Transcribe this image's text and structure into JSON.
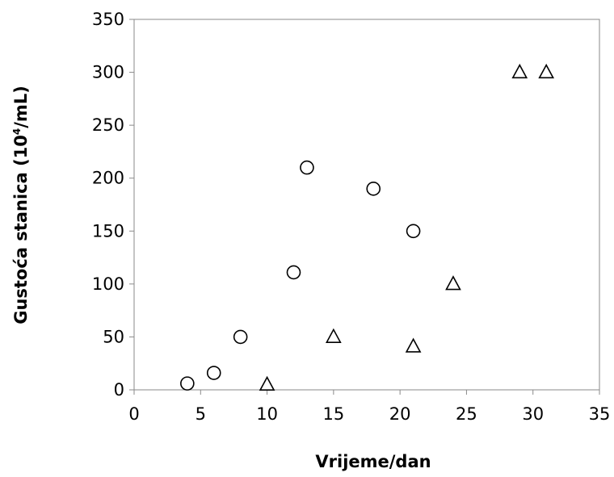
{
  "chart_data": {
    "type": "scatter",
    "title": "",
    "xlabel": "Vrijeme/dan",
    "ylabel": {
      "base": "Gustoća stanica (10",
      "exponent": "4",
      "unit": "/mL)"
    },
    "xlim": [
      0,
      35
    ],
    "ylim": [
      0,
      350
    ],
    "x_ticks": [
      0,
      5,
      10,
      15,
      20,
      25,
      30,
      35
    ],
    "y_ticks": [
      0,
      50,
      100,
      150,
      200,
      250,
      300,
      350
    ],
    "grid": false,
    "legend": "none",
    "series": [
      {
        "marker": "circle",
        "color": "#000000",
        "points": [
          {
            "x": 4,
            "y": 6
          },
          {
            "x": 6,
            "y": 16
          },
          {
            "x": 8,
            "y": 50
          },
          {
            "x": 12,
            "y": 111
          },
          {
            "x": 13,
            "y": 210
          },
          {
            "x": 18,
            "y": 190
          },
          {
            "x": 21,
            "y": 150
          }
        ]
      },
      {
        "marker": "triangle",
        "color": "#000000",
        "points": [
          {
            "x": 10,
            "y": 5
          },
          {
            "x": 15,
            "y": 50
          },
          {
            "x": 21,
            "y": 41
          },
          {
            "x": 24,
            "y": 100
          },
          {
            "x": 29,
            "y": 300
          },
          {
            "x": 31,
            "y": 300
          }
        ]
      }
    ]
  }
}
